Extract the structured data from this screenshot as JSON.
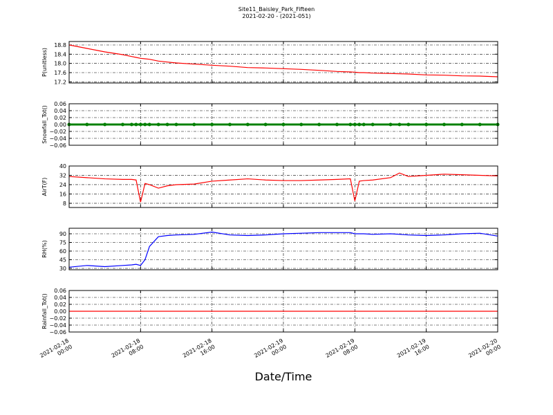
{
  "title": "Site11_Baisley_Park_Fifteen",
  "subtitle": "2021-02-20 - (2021-051)",
  "xlabel": "Date/Time",
  "xlim": [
    "2021-02-18 00:00",
    "2021-02-20 00:00"
  ],
  "xticks": [
    "2021-02-18 00:00",
    "2021-02-18 08:00",
    "2021-02-18 16:00",
    "2021-02-19 00:00",
    "2021-02-19 08:00",
    "2021-02-19 16:00",
    "2021-02-20 00:00"
  ],
  "x": [
    "2021-02-18 00:00",
    "2021-02-18 02:00",
    "2021-02-18 04:00",
    "2021-02-18 06:00",
    "2021-02-18 07:00",
    "2021-02-18 07:30",
    "2021-02-18 08:00",
    "2021-02-18 08:30",
    "2021-02-18 09:00",
    "2021-02-18 10:00",
    "2021-02-18 11:00",
    "2021-02-18 12:00",
    "2021-02-18 14:00",
    "2021-02-18 16:00",
    "2021-02-18 18:00",
    "2021-02-18 20:00",
    "2021-02-18 22:00",
    "2021-02-19 00:00",
    "2021-02-19 02:00",
    "2021-02-19 04:00",
    "2021-02-19 06:00",
    "2021-02-19 07:30",
    "2021-02-19 08:00",
    "2021-02-19 08:30",
    "2021-02-19 09:00",
    "2021-02-19 10:00",
    "2021-02-19 12:00",
    "2021-02-19 13:00",
    "2021-02-19 14:00",
    "2021-02-19 16:00",
    "2021-02-19 18:00",
    "2021-02-19 20:00",
    "2021-02-19 22:00",
    "2021-02-20 00:00"
  ],
  "chart_data": [
    {
      "type": "line",
      "ylabel": "P(unitless)",
      "ylim": [
        17.15,
        18.95
      ],
      "grid": true,
      "yticks": [
        17.2,
        17.6,
        {
          "value": 18,
          "label": "18.0"
        },
        18.4,
        18.8
      ],
      "series": [
        {
          "color": "#ff0000",
          "values": [
            18.8,
            18.65,
            18.5,
            18.38,
            18.3,
            18.26,
            18.22,
            18.2,
            18.18,
            18.1,
            18.06,
            18.02,
            17.97,
            17.92,
            17.88,
            17.82,
            17.8,
            17.77,
            17.74,
            17.7,
            17.65,
            17.63,
            17.62,
            17.6,
            17.6,
            17.58,
            17.56,
            17.55,
            17.54,
            17.5,
            17.49,
            17.46,
            17.45,
            17.42
          ]
        }
      ]
    },
    {
      "type": "line",
      "ylabel": "Snowfall_Tot()",
      "ylim": [
        -0.06,
        0.06
      ],
      "grid": true,
      "yticks": [
        {
          "value": -0.06,
          "label": "−0.06"
        },
        {
          "value": -0.04,
          "label": "−0.04"
        },
        {
          "value": -0.02,
          "label": "−0.02"
        },
        {
          "value": 0,
          "label": "0.00"
        },
        0.02,
        0.04,
        0.06
      ],
      "series": [
        {
          "color": "#008000",
          "marker": "o",
          "values": [
            0,
            0,
            0,
            0,
            0,
            0,
            0,
            0,
            0,
            0,
            0,
            0,
            0,
            0,
            0,
            0,
            0,
            0,
            0,
            0,
            0,
            0,
            0,
            0,
            0,
            0,
            0,
            0,
            0,
            0,
            0,
            0,
            0,
            0
          ]
        }
      ]
    },
    {
      "type": "line",
      "ylabel": "AirT(F)",
      "ylim": [
        4.4,
        40
      ],
      "grid": true,
      "yticks": [
        8,
        16,
        24,
        32,
        40
      ],
      "series": [
        {
          "color": "#ff0000",
          "values": [
            31,
            30,
            29,
            28.5,
            28.5,
            28,
            9,
            25,
            24,
            21,
            23,
            24,
            24.5,
            27,
            28,
            29,
            28,
            27.5,
            27.5,
            28,
            28.5,
            29,
            10,
            27,
            27.5,
            28,
            30,
            34,
            31,
            32,
            33,
            32.5,
            32,
            31.5
          ]
        }
      ]
    },
    {
      "type": "line",
      "ylabel": "RH(%)",
      "ylim": [
        27.6,
        99.6
      ],
      "grid": true,
      "yticks": [
        30,
        45,
        60,
        75,
        90
      ],
      "series": [
        {
          "color": "#0000ff",
          "values": [
            32,
            35,
            33,
            35,
            36,
            37,
            35,
            45,
            68,
            85,
            87,
            88,
            89,
            93,
            88,
            87,
            88,
            90,
            91,
            92,
            92,
            92,
            90,
            90,
            90,
            89,
            90,
            89,
            88,
            87,
            88,
            90,
            91,
            86
          ]
        }
      ]
    },
    {
      "type": "line",
      "ylabel": "Rainfall_Tot()",
      "ylim": [
        -0.06,
        0.06
      ],
      "grid": true,
      "yticks": [
        {
          "value": -0.06,
          "label": "−0.06"
        },
        {
          "value": -0.04,
          "label": "−0.04"
        },
        {
          "value": -0.02,
          "label": "−0.02"
        },
        {
          "value": 0,
          "label": "0.00"
        },
        0.02,
        0.04,
        0.06
      ],
      "series": [
        {
          "color": "#ff0000",
          "values": [
            0,
            0,
            0,
            0,
            0,
            0,
            0,
            0,
            0,
            0,
            0,
            0,
            0,
            0,
            0,
            0,
            0,
            0,
            0,
            0,
            0,
            0,
            0,
            0,
            0,
            0,
            0,
            0,
            0,
            0,
            0,
            0,
            0,
            0
          ]
        }
      ]
    }
  ]
}
